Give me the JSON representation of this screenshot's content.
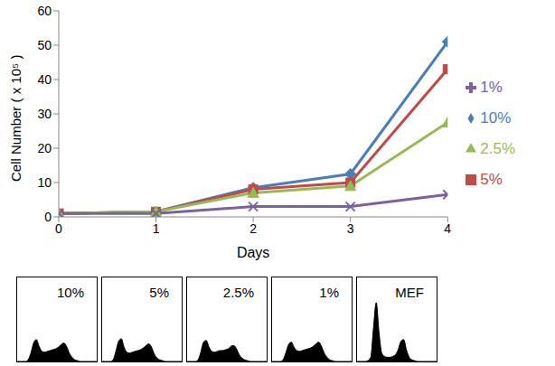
{
  "chart_data": [
    {
      "type": "line",
      "x_label": "Days",
      "y_label": "Cell Number ( x 10⁵ )",
      "x": [
        0,
        1,
        2,
        3,
        4
      ],
      "xlim": [
        0,
        4
      ],
      "xticks": [
        0,
        1,
        2,
        3,
        4
      ],
      "ylim": [
        0,
        60
      ],
      "yticks": [
        0,
        10,
        20,
        30,
        40,
        50,
        60
      ],
      "grid": false,
      "legend": "right",
      "series": [
        {
          "name": "10%",
          "color": "#4a7ebb",
          "marker": "diamond",
          "values": [
            1,
            1.5,
            8.5,
            12.5,
            51
          ]
        },
        {
          "name": "5%",
          "color": "#be4b48",
          "marker": "square",
          "values": [
            1,
            1.5,
            8,
            10,
            43
          ]
        },
        {
          "name": "2.5%",
          "color": "#98b954",
          "marker": "triangle",
          "values": [
            1,
            1.5,
            7,
            9,
            27.5
          ]
        },
        {
          "name": "1%",
          "color": "#7d60a0",
          "marker": "x",
          "values": [
            1,
            1,
            3,
            3,
            6.5
          ]
        }
      ]
    },
    {
      "type": "area",
      "title": "10%",
      "color": "#000000",
      "tick_labels": false,
      "ylim": [
        0,
        100
      ],
      "values": [
        0,
        0,
        0,
        0,
        2,
        10,
        22,
        26,
        18,
        12,
        11,
        12,
        13,
        14,
        15,
        17,
        20,
        22,
        18,
        10,
        5,
        2,
        1,
        0,
        0,
        0,
        0,
        0,
        0,
        0
      ]
    },
    {
      "type": "area",
      "title": "5%",
      "color": "#000000",
      "tick_labels": false,
      "ylim": [
        0,
        100
      ],
      "values": [
        0,
        0,
        0,
        0,
        2,
        12,
        24,
        27,
        17,
        11,
        10,
        11,
        12,
        13,
        14,
        16,
        19,
        21,
        17,
        9,
        4,
        2,
        1,
        0,
        0,
        0,
        0,
        0,
        0,
        0
      ]
    },
    {
      "type": "area",
      "title": "2.5%",
      "color": "#000000",
      "tick_labels": false,
      "ylim": [
        0,
        100
      ],
      "values": [
        0,
        0,
        0,
        0,
        2,
        11,
        23,
        25,
        17,
        12,
        11,
        12,
        13,
        13,
        14,
        15,
        18,
        19,
        15,
        8,
        4,
        2,
        1,
        0,
        0,
        0,
        0,
        0,
        0,
        0
      ]
    },
    {
      "type": "area",
      "title": "1%",
      "color": "#000000",
      "tick_labels": false,
      "ylim": [
        0,
        100
      ],
      "values": [
        0,
        0,
        0,
        0,
        2,
        10,
        20,
        23,
        17,
        13,
        12,
        13,
        14,
        15,
        16,
        18,
        21,
        23,
        18,
        10,
        5,
        2,
        1,
        0,
        0,
        0,
        0,
        0,
        0,
        0
      ]
    },
    {
      "type": "area",
      "title": "MEF",
      "color": "#000000",
      "tick_labels": false,
      "ylim": [
        0,
        100
      ],
      "values": [
        0,
        0,
        0,
        0,
        1,
        5,
        40,
        70,
        35,
        10,
        6,
        5,
        5,
        6,
        8,
        14,
        24,
        26,
        14,
        5,
        2,
        1,
        0,
        0,
        0,
        0,
        0,
        0,
        0,
        0
      ]
    }
  ]
}
